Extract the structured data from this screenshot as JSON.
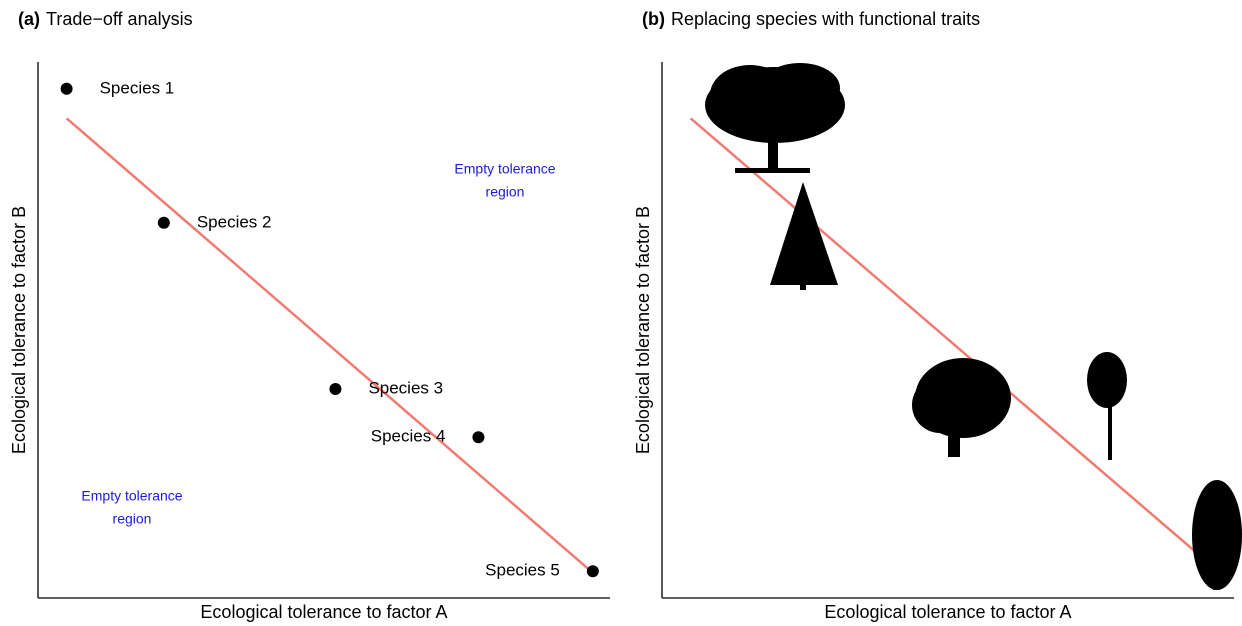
{
  "chart_data": [
    {
      "type": "scatter",
      "panel_label": "(a)",
      "title": "Trade−off analysis",
      "x_label": "Ecological tolerance to factor A",
      "y_label": "Ecological tolerance to factor B",
      "xlim": [
        0,
        10
      ],
      "ylim": [
        0,
        10
      ],
      "points": {
        "labels": [
          "Species 1",
          "Species 2",
          "Species 3",
          "Species 4",
          "Species 5"
        ],
        "x": [
          0.5,
          2.2,
          5.2,
          7.7,
          9.7
        ],
        "y": [
          9.5,
          7.0,
          3.9,
          3.0,
          0.5
        ],
        "color": "#000000"
      },
      "trend": {
        "x": [
          0.5,
          9.7
        ],
        "y": [
          8.95,
          0.47
        ],
        "color": "#f07b72"
      },
      "annotations": [
        {
          "lines": [
            "Empty tolerance",
            "region"
          ],
          "color": "#1a1adb"
        },
        {
          "lines": [
            "Empty tolerance",
            "region"
          ],
          "color": "#1a1adb"
        }
      ]
    },
    {
      "type": "line",
      "panel_label": "(b)",
      "title": "Replacing species with functional traits",
      "x_label": "Ecological tolerance to factor A",
      "y_label": "Ecological tolerance to factor B",
      "xlim": [
        0,
        10
      ],
      "ylim": [
        0,
        10
      ],
      "trend": {
        "x": [
          0.5,
          9.7
        ],
        "y": [
          8.95,
          0.52
        ],
        "color": "#f07b72"
      }
    }
  ]
}
